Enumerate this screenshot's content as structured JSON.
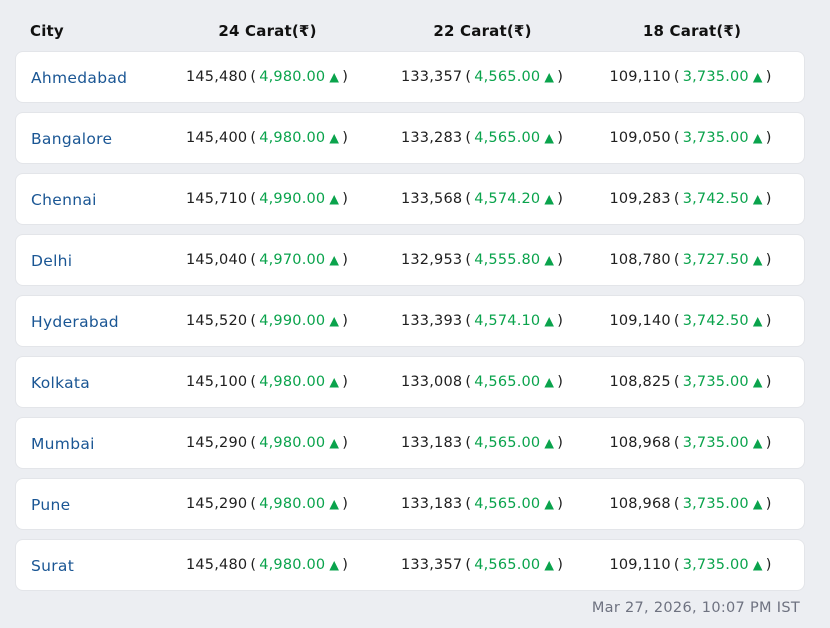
{
  "table": {
    "headers": {
      "city": "City",
      "c24": "24 Carat(₹)",
      "c22": "22 Carat(₹)",
      "c18": "18 Carat(₹)"
    },
    "format": {
      "open_paren": "(",
      "close_paren": ")",
      "up_arrow_icon": "▲"
    },
    "rows": [
      {
        "city": "Ahmedabad",
        "c24": {
          "price": "145,480",
          "change": "4,980.00"
        },
        "c22": {
          "price": "133,357",
          "change": "4,565.00"
        },
        "c18": {
          "price": "109,110",
          "change": "3,735.00"
        }
      },
      {
        "city": "Bangalore",
        "c24": {
          "price": "145,400",
          "change": "4,980.00"
        },
        "c22": {
          "price": "133,283",
          "change": "4,565.00"
        },
        "c18": {
          "price": "109,050",
          "change": "3,735.00"
        }
      },
      {
        "city": "Chennai",
        "c24": {
          "price": "145,710",
          "change": "4,990.00"
        },
        "c22": {
          "price": "133,568",
          "change": "4,574.20"
        },
        "c18": {
          "price": "109,283",
          "change": "3,742.50"
        }
      },
      {
        "city": "Delhi",
        "c24": {
          "price": "145,040",
          "change": "4,970.00"
        },
        "c22": {
          "price": "132,953",
          "change": "4,555.80"
        },
        "c18": {
          "price": "108,780",
          "change": "3,727.50"
        }
      },
      {
        "city": "Hyderabad",
        "c24": {
          "price": "145,520",
          "change": "4,990.00"
        },
        "c22": {
          "price": "133,393",
          "change": "4,574.10"
        },
        "c18": {
          "price": "109,140",
          "change": "3,742.50"
        }
      },
      {
        "city": "Kolkata",
        "c24": {
          "price": "145,100",
          "change": "4,980.00"
        },
        "c22": {
          "price": "133,008",
          "change": "4,565.00"
        },
        "c18": {
          "price": "108,825",
          "change": "3,735.00"
        }
      },
      {
        "city": "Mumbai",
        "c24": {
          "price": "145,290",
          "change": "4,980.00"
        },
        "c22": {
          "price": "133,183",
          "change": "4,565.00"
        },
        "c18": {
          "price": "108,968",
          "change": "3,735.00"
        }
      },
      {
        "city": "Pune",
        "c24": {
          "price": "145,290",
          "change": "4,980.00"
        },
        "c22": {
          "price": "133,183",
          "change": "4,565.00"
        },
        "c18": {
          "price": "108,968",
          "change": "3,735.00"
        }
      },
      {
        "city": "Surat",
        "c24": {
          "price": "145,480",
          "change": "4,980.00"
        },
        "c22": {
          "price": "133,357",
          "change": "4,565.00"
        },
        "c18": {
          "price": "109,110",
          "change": "3,735.00"
        }
      }
    ]
  },
  "footer": {
    "timestamp": "Mar 27, 2026, 10:07 PM IST"
  },
  "colors": {
    "page_bg": "#eceef2",
    "card_border": "#e3e5e9",
    "city_link_blue": "#1a5694",
    "positive_green": "#0aa34c",
    "footer_gray": "#6e7280"
  }
}
